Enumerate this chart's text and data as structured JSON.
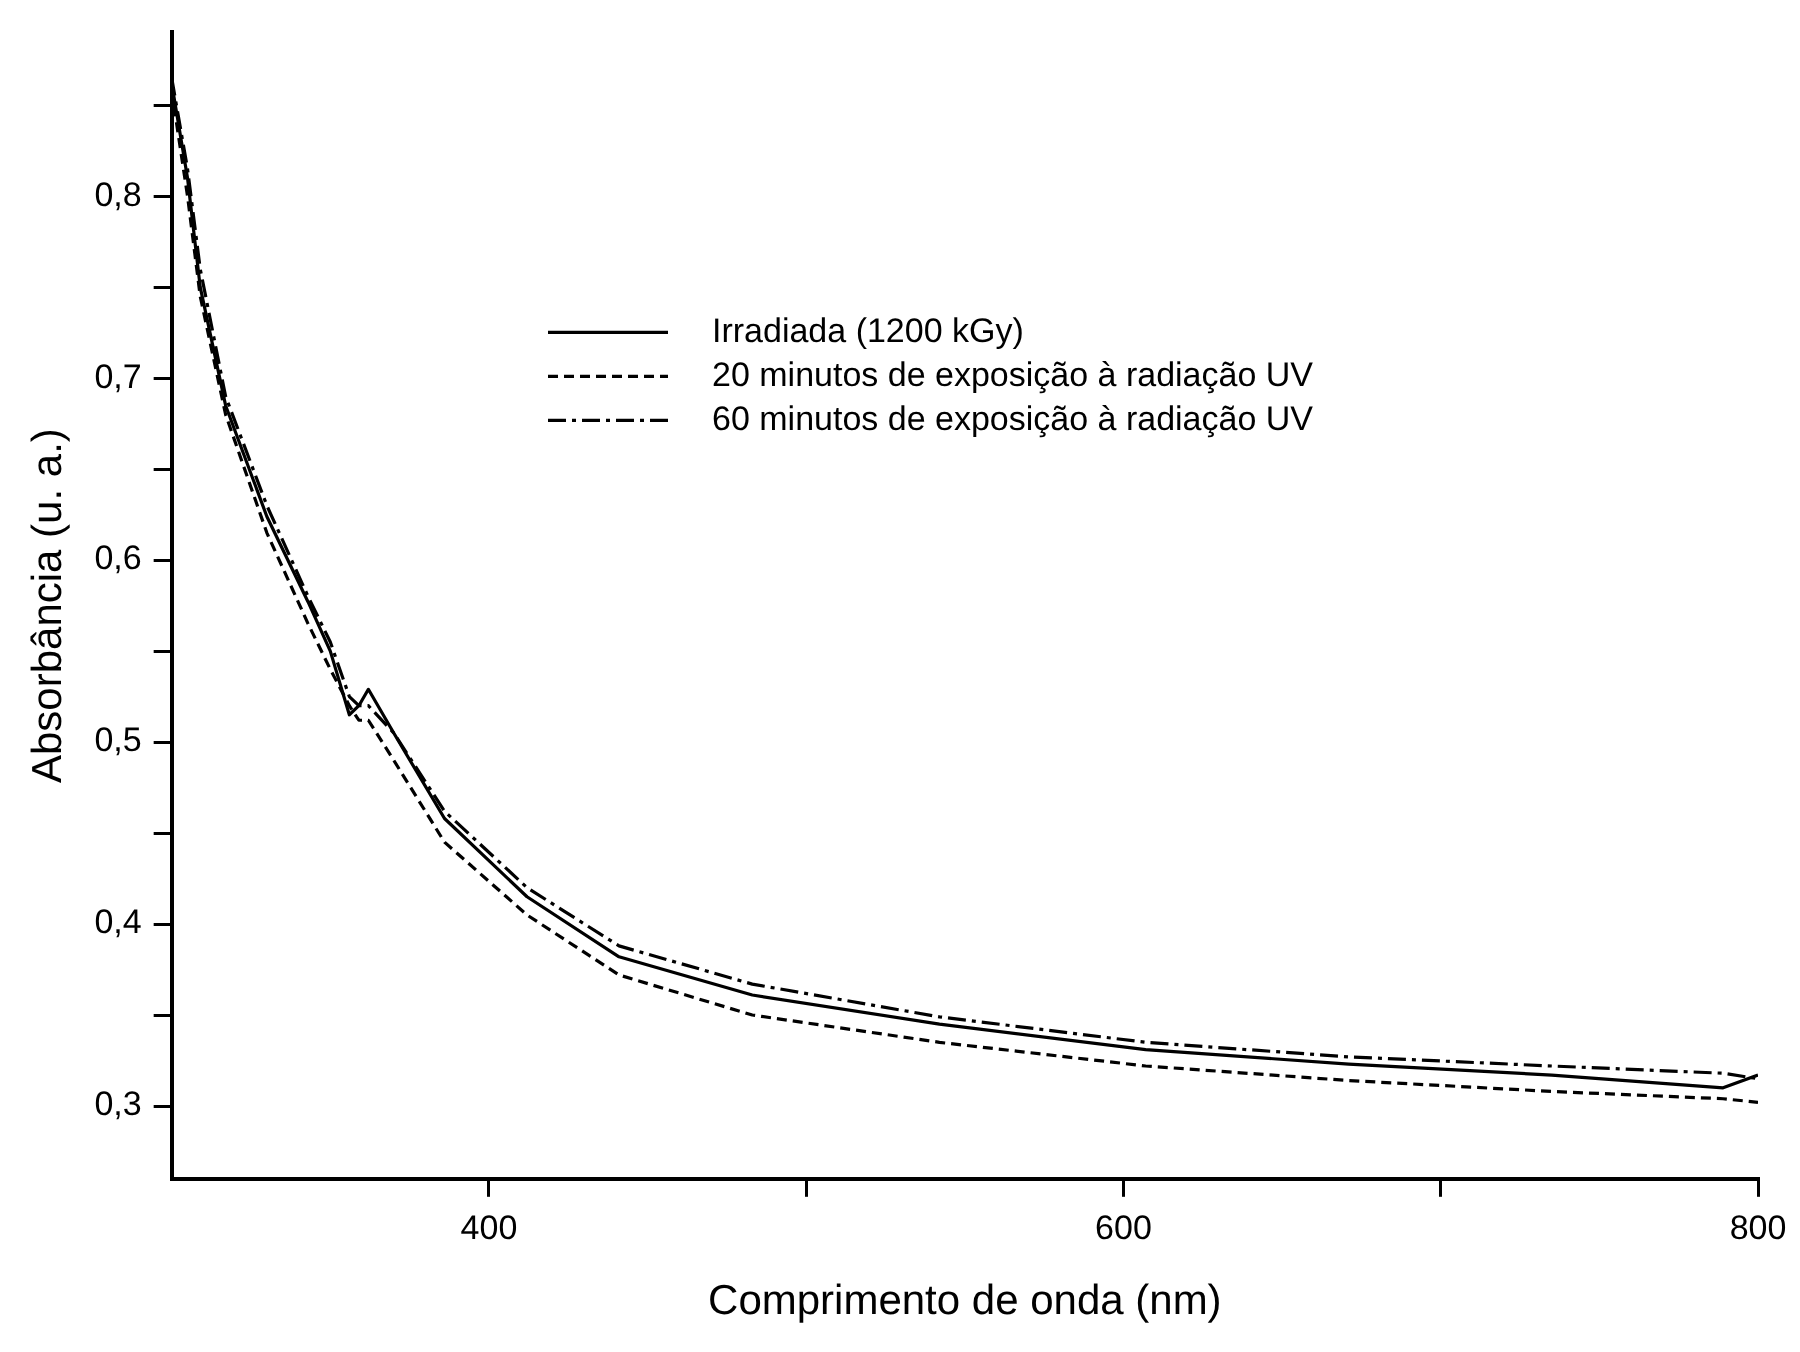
{
  "chart_data": {
    "type": "line",
    "xlabel": "Comprimento de onda (nm)",
    "ylabel": "Absorbância (u. a.)",
    "xlim": [
      300,
      800
    ],
    "xticks": [
      400,
      {
        "value": 500,
        "label": null
      },
      600,
      {
        "value": 700,
        "label": null
      },
      800
    ],
    "ylim": [
      0.26,
      0.89
    ],
    "yticks": [
      {
        "value": 0.3,
        "label": "0,3"
      },
      {
        "value": 0.35,
        "label": null
      },
      {
        "value": 0.4,
        "label": "0,4"
      },
      {
        "value": 0.45,
        "label": null
      },
      {
        "value": 0.5,
        "label": "0,5"
      },
      {
        "value": 0.55,
        "label": null
      },
      {
        "value": 0.6,
        "label": "0,6"
      },
      {
        "value": 0.65,
        "label": null
      },
      {
        "value": 0.7,
        "label": "0,7"
      },
      {
        "value": 0.75,
        "label": null
      },
      {
        "value": 0.8,
        "label": "0,8"
      },
      {
        "value": 0.85,
        "label": null
      }
    ],
    "grid": false,
    "legend": "top right",
    "marker": "none",
    "series": [
      {
        "name": "Irradiada (1200 kGy)",
        "color": "#000000",
        "line_style": "solid",
        "x": [
          300,
          305,
          309,
          317,
          330,
          343,
          350,
          356,
          359,
          362,
          370,
          386,
          412,
          441,
          483,
          542,
          607,
          671,
          735,
          789,
          800
        ],
        "values": [
          0.862,
          0.81,
          0.75,
          0.685,
          0.624,
          0.577,
          0.55,
          0.515,
          0.52,
          0.529,
          0.505,
          0.458,
          0.415,
          0.382,
          0.361,
          0.345,
          0.331,
          0.323,
          0.317,
          0.31,
          0.317
        ]
      },
      {
        "name": "20 minutos de exposição à radiação UV",
        "color": "#000000",
        "line_style": "dashed",
        "x": [
          300,
          305,
          309,
          317,
          330,
          343,
          350,
          356,
          359,
          362,
          370,
          386,
          412,
          441,
          483,
          542,
          607,
          671,
          735,
          789,
          800
        ],
        "values": [
          0.858,
          0.8,
          0.745,
          0.68,
          0.615,
          0.565,
          0.54,
          0.52,
          0.512,
          0.512,
          0.49,
          0.445,
          0.405,
          0.372,
          0.35,
          0.335,
          0.322,
          0.314,
          0.308,
          0.304,
          0.302
        ]
      },
      {
        "name": "60 minutos de exposição à radiação UV",
        "color": "#000000",
        "line_style": "dashdot",
        "x": [
          300,
          305,
          309,
          317,
          330,
          343,
          350,
          356,
          359,
          362,
          370,
          386,
          412,
          441,
          483,
          542,
          607,
          671,
          735,
          789,
          800
        ],
        "values": [
          0.865,
          0.815,
          0.76,
          0.69,
          0.63,
          0.58,
          0.555,
          0.525,
          0.52,
          0.52,
          0.505,
          0.462,
          0.42,
          0.388,
          0.367,
          0.349,
          0.335,
          0.327,
          0.322,
          0.318,
          0.315
        ]
      }
    ]
  }
}
